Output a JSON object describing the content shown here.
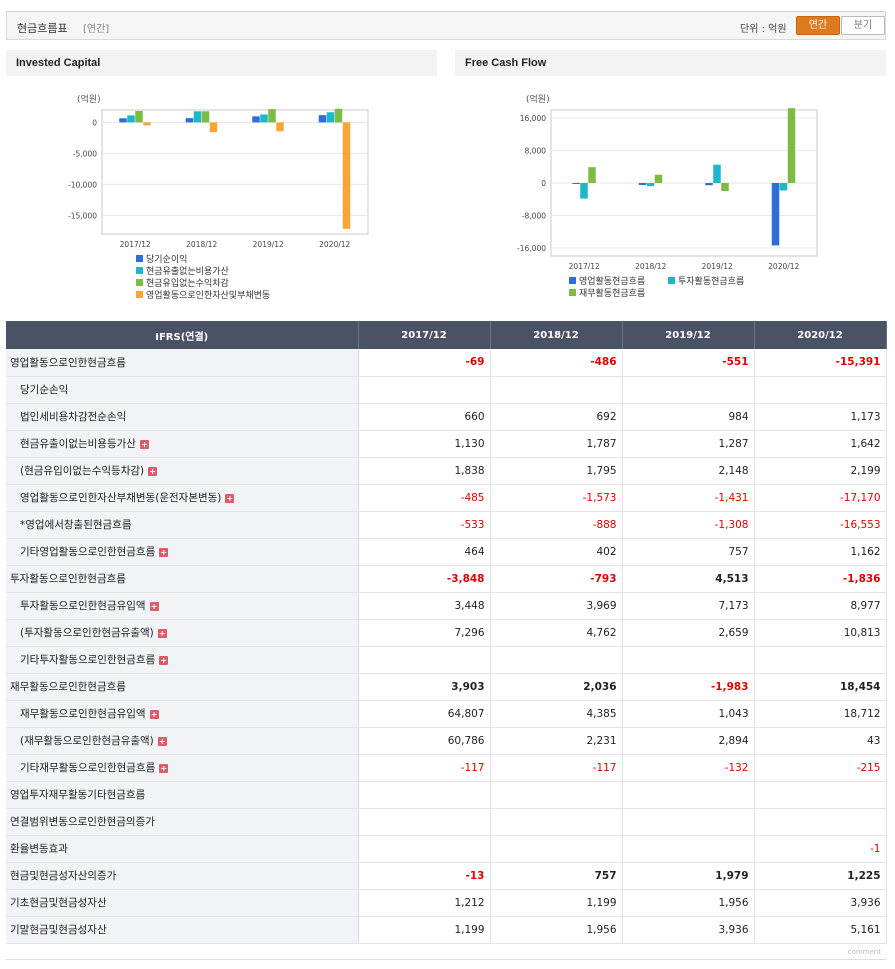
{
  "header": {
    "title": "현금흐름표",
    "period_tag": "[연간]",
    "unit_label": "단위 : 억원",
    "btn_annual": "연간",
    "btn_quarter": "분기"
  },
  "chart_data": [
    {
      "type": "bar",
      "title": "Invested Capital",
      "unit": "(억원)",
      "categories": [
        "2017/12",
        "2018/12",
        "2019/12",
        "2020/12"
      ],
      "ylim": [
        -18000,
        2000
      ],
      "yticks": [
        0,
        -5000,
        -10000,
        -15000
      ],
      "ytick_labels": [
        "0",
        "-5,000",
        "-10,000",
        "-15,000"
      ],
      "grid": true,
      "legend": "bottom",
      "series": [
        {
          "name": "당기순이익",
          "color": "#2d6fd6",
          "values": [
            660,
            692,
            984,
            1173
          ]
        },
        {
          "name": "현금유출없는비용가산",
          "color": "#1db7c9",
          "values": [
            1130,
            1787,
            1287,
            1642
          ]
        },
        {
          "name": "현금유입없는수익차감",
          "color": "#7dbb44",
          "values": [
            1838,
            1795,
            2148,
            2199
          ]
        },
        {
          "name": "영업활동으로인한자산및부채변동",
          "color": "#f7a535",
          "values": [
            -485,
            -1573,
            -1431,
            -17170
          ]
        }
      ]
    },
    {
      "type": "bar",
      "title": "Free Cash Flow",
      "unit": "(억원)",
      "categories": [
        "2017/12",
        "2018/12",
        "2019/12",
        "2020/12"
      ],
      "ylim": [
        -18000,
        18000
      ],
      "yticks": [
        16000,
        8000,
        0,
        -8000,
        -16000
      ],
      "ytick_labels": [
        "16,000",
        "8,000",
        "0",
        "-8,000",
        "-16,000"
      ],
      "grid": true,
      "legend": "bottom",
      "series": [
        {
          "name": "영업활동현금흐름",
          "color": "#2d6fd6",
          "values": [
            -69,
            -486,
            -551,
            -15391
          ]
        },
        {
          "name": "투자활동현금흐름",
          "color": "#1db7c9",
          "values": [
            -3848,
            -793,
            4513,
            -1836
          ]
        },
        {
          "name": "재무활동현금흐름",
          "color": "#7dbb44",
          "values": [
            3903,
            2036,
            -1983,
            18454
          ]
        }
      ]
    }
  ],
  "table": {
    "header": [
      "IFRS(연결)",
      "2017/12",
      "2018/12",
      "2019/12",
      "2020/12"
    ],
    "rows": [
      {
        "label": "영업활동으로인한현금흐름",
        "level": 0,
        "plus": false,
        "major": false,
        "bold": true,
        "values": [
          "-69",
          "-486",
          "-551",
          "-15,391"
        ],
        "neg": [
          true,
          true,
          true,
          true
        ]
      },
      {
        "label": "당기순손익",
        "level": 1,
        "plus": false,
        "major": false,
        "bold": false,
        "values": [
          "",
          "",
          "",
          ""
        ],
        "neg": [
          false,
          false,
          false,
          false
        ]
      },
      {
        "label": "법인세비용차감전순손익",
        "level": 1,
        "plus": false,
        "major": false,
        "bold": false,
        "values": [
          "660",
          "692",
          "984",
          "1,173"
        ],
        "neg": [
          false,
          false,
          false,
          false
        ]
      },
      {
        "label": "현금유출이없는비용등가산",
        "level": 1,
        "plus": true,
        "major": false,
        "bold": false,
        "values": [
          "1,130",
          "1,787",
          "1,287",
          "1,642"
        ],
        "neg": [
          false,
          false,
          false,
          false
        ]
      },
      {
        "label": "(현금유입이없는수익등차감)",
        "level": 1,
        "plus": true,
        "major": false,
        "bold": false,
        "values": [
          "1,838",
          "1,795",
          "2,148",
          "2,199"
        ],
        "neg": [
          false,
          false,
          false,
          false
        ]
      },
      {
        "label": "영업활동으로인한자산부채변동(운전자본변동)",
        "level": 1,
        "plus": true,
        "major": false,
        "bold": false,
        "values": [
          "-485",
          "-1,573",
          "-1,431",
          "-17,170"
        ],
        "neg": [
          true,
          true,
          true,
          true
        ]
      },
      {
        "label": "*영업에서창출된현금흐름",
        "level": 1,
        "plus": false,
        "major": false,
        "bold": false,
        "values": [
          "-533",
          "-888",
          "-1,308",
          "-16,553"
        ],
        "neg": [
          true,
          true,
          true,
          true
        ]
      },
      {
        "label": "기타영업활동으로인한현금흐름",
        "level": 1,
        "plus": true,
        "major": false,
        "bold": false,
        "values": [
          "464",
          "402",
          "757",
          "1,162"
        ],
        "neg": [
          false,
          false,
          false,
          false
        ]
      },
      {
        "label": "투자활동으로인한현금흐름",
        "level": 0,
        "plus": false,
        "major": true,
        "bold": true,
        "values": [
          "-3,848",
          "-793",
          "4,513",
          "-1,836"
        ],
        "neg": [
          true,
          true,
          false,
          true
        ]
      },
      {
        "label": "투자활동으로인한현금유입액",
        "level": 1,
        "plus": true,
        "major": false,
        "bold": false,
        "values": [
          "3,448",
          "3,969",
          "7,173",
          "8,977"
        ],
        "neg": [
          false,
          false,
          false,
          false
        ]
      },
      {
        "label": "(투자활동으로인한현금유출액)",
        "level": 1,
        "plus": true,
        "major": false,
        "bold": false,
        "values": [
          "7,296",
          "4,762",
          "2,659",
          "10,813"
        ],
        "neg": [
          false,
          false,
          false,
          false
        ]
      },
      {
        "label": "기타투자활동으로인한현금흐름",
        "level": 1,
        "plus": true,
        "major": false,
        "bold": false,
        "values": [
          "",
          "",
          "",
          ""
        ],
        "neg": [
          false,
          false,
          false,
          false
        ]
      },
      {
        "label": "재무활동으로인한현금흐름",
        "level": 0,
        "plus": false,
        "major": true,
        "bold": true,
        "values": [
          "3,903",
          "2,036",
          "-1,983",
          "18,454"
        ],
        "neg": [
          false,
          false,
          true,
          false
        ]
      },
      {
        "label": "재무활동으로인한현금유입액",
        "level": 1,
        "plus": true,
        "major": false,
        "bold": false,
        "values": [
          "64,807",
          "4,385",
          "1,043",
          "18,712"
        ],
        "neg": [
          false,
          false,
          false,
          false
        ]
      },
      {
        "label": "(재무활동으로인한현금유출액)",
        "level": 1,
        "plus": true,
        "major": false,
        "bold": false,
        "values": [
          "60,786",
          "2,231",
          "2,894",
          "43"
        ],
        "neg": [
          false,
          false,
          false,
          false
        ]
      },
      {
        "label": "기타재무활동으로인한현금흐름",
        "level": 1,
        "plus": true,
        "major": false,
        "bold": false,
        "values": [
          "-117",
          "-117",
          "-132",
          "-215"
        ],
        "neg": [
          true,
          true,
          true,
          true
        ]
      },
      {
        "label": "영업투자재무활동기타현금흐름",
        "level": 0,
        "plus": false,
        "major": true,
        "bold": false,
        "values": [
          "",
          "",
          "",
          ""
        ],
        "neg": [
          false,
          false,
          false,
          false
        ]
      },
      {
        "label": "연결범위변동으로인한현금의증가",
        "level": 0,
        "plus": false,
        "major": false,
        "bold": false,
        "values": [
          "",
          "",
          "",
          ""
        ],
        "neg": [
          false,
          false,
          false,
          false
        ]
      },
      {
        "label": "환율변동효과",
        "level": 0,
        "plus": false,
        "major": false,
        "bold": false,
        "values": [
          "",
          "",
          "",
          "-1"
        ],
        "neg": [
          false,
          false,
          false,
          true
        ]
      },
      {
        "label": "현금및현금성자산의증가",
        "level": 0,
        "plus": false,
        "major": false,
        "bold": true,
        "values": [
          "-13",
          "757",
          "1,979",
          "1,225"
        ],
        "neg": [
          true,
          false,
          false,
          false
        ]
      },
      {
        "label": "기초현금및현금성자산",
        "level": 0,
        "plus": false,
        "major": false,
        "bold": false,
        "values": [
          "1,212",
          "1,199",
          "1,956",
          "3,936"
        ],
        "neg": [
          false,
          false,
          false,
          false
        ]
      },
      {
        "label": "기말현금및현금성자산",
        "level": 0,
        "plus": false,
        "major": false,
        "bold": false,
        "values": [
          "1,199",
          "1,956",
          "3,936",
          "5,161"
        ],
        "neg": [
          false,
          false,
          false,
          false
        ]
      }
    ]
  },
  "footer": {
    "comment": "comment"
  }
}
